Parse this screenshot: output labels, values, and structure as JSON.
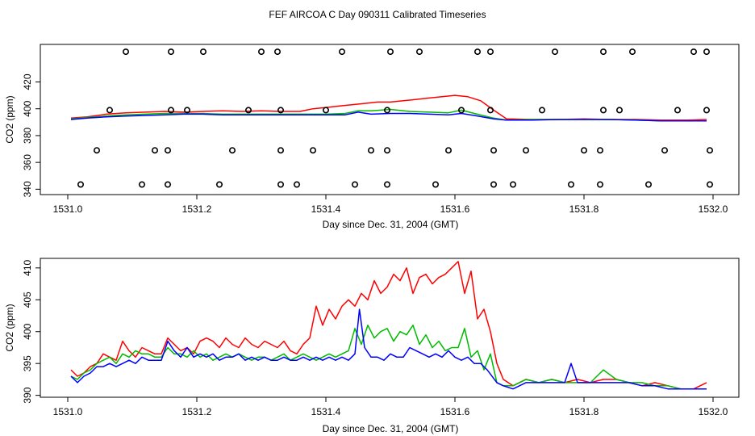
{
  "title": "FEF AIRCOA C  Day 090311  Calibrated Timeseries",
  "colors": {
    "series1": "#ff0000",
    "series2": "#00bb00",
    "series3": "#0000ff",
    "axis": "#000000"
  },
  "chart_data": [
    {
      "type": "line",
      "panel": "top",
      "xlabel": "Day since Dec. 31, 2004 (GMT)",
      "ylabel": "CO2 (ppm)",
      "xlim": [
        1531.0,
        1532.0
      ],
      "ylim": [
        336,
        448
      ],
      "x_ticks": [
        1531.0,
        1531.2,
        1531.4,
        1531.6,
        1531.8,
        1532.0
      ],
      "x_tick_labels": [
        "1531.0",
        "1531.2",
        "1531.4",
        "1531.6",
        "1531.8",
        "1532.0"
      ],
      "y_ticks": [
        340,
        360,
        380,
        400,
        420
      ],
      "y_tick_labels": [
        "340",
        "360",
        "380",
        "400",
        "420"
      ],
      "series": [
        {
          "name": "series1",
          "color": "#ff0000",
          "x": [
            1531.005,
            1531.03,
            1531.06,
            1531.09,
            1531.12,
            1531.15,
            1531.18,
            1531.21,
            1531.24,
            1531.27,
            1531.3,
            1531.33,
            1531.36,
            1531.38,
            1531.4,
            1531.42,
            1531.44,
            1531.46,
            1531.48,
            1531.5,
            1531.52,
            1531.54,
            1531.56,
            1531.58,
            1531.6,
            1531.62,
            1531.64,
            1531.66,
            1531.68,
            1531.72,
            1531.76,
            1531.8,
            1531.84,
            1531.88,
            1531.92,
            1531.96,
            1531.99
          ],
          "values": [
            393,
            394,
            396,
            397,
            397.5,
            398,
            397.5,
            398,
            398.5,
            398,
            398.5,
            398,
            398,
            400,
            401,
            402,
            403,
            404,
            405,
            405,
            406,
            407,
            408,
            409,
            410,
            409,
            406,
            399,
            392.5,
            392,
            392,
            392.5,
            392,
            392,
            391.5,
            391.5,
            392
          ]
        },
        {
          "name": "series2",
          "color": "#00bb00",
          "x": [
            1531.005,
            1531.03,
            1531.06,
            1531.09,
            1531.12,
            1531.15,
            1531.18,
            1531.21,
            1531.24,
            1531.27,
            1531.3,
            1531.33,
            1531.36,
            1531.4,
            1531.43,
            1531.45,
            1531.47,
            1531.5,
            1531.53,
            1531.56,
            1531.59,
            1531.61,
            1531.63,
            1531.66,
            1531.68,
            1531.72,
            1531.76,
            1531.8,
            1531.84,
            1531.88,
            1531.92,
            1531.96,
            1531.99
          ],
          "values": [
            392.5,
            393.5,
            394.5,
            395.5,
            396,
            396.5,
            396.5,
            396.5,
            396,
            396,
            396,
            396,
            396,
            396,
            396.5,
            398.5,
            398.5,
            399.5,
            398,
            397.5,
            397,
            399,
            396.5,
            393,
            391.5,
            392,
            392,
            392,
            392,
            391.5,
            391,
            391,
            391
          ]
        },
        {
          "name": "series3",
          "color": "#0000ff",
          "x": [
            1531.005,
            1531.03,
            1531.06,
            1531.09,
            1531.12,
            1531.15,
            1531.18,
            1531.21,
            1531.24,
            1531.27,
            1531.3,
            1531.33,
            1531.36,
            1531.4,
            1531.43,
            1531.45,
            1531.47,
            1531.5,
            1531.53,
            1531.56,
            1531.59,
            1531.61,
            1531.63,
            1531.66,
            1531.68,
            1531.72,
            1531.76,
            1531.8,
            1531.84,
            1531.88,
            1531.92,
            1531.96,
            1531.99
          ],
          "values": [
            392,
            393,
            394,
            394.5,
            395,
            395.5,
            396,
            396,
            395.5,
            395.5,
            395.5,
            395.5,
            395.5,
            395.5,
            395.5,
            397.5,
            396,
            396.5,
            396.5,
            396,
            395.5,
            396.5,
            395,
            392.5,
            391.5,
            391.5,
            392,
            392,
            392,
            391.5,
            391,
            391,
            391
          ]
        }
      ],
      "markers": {
        "name": "open circles",
        "x": [
          1531.09,
          1531.16,
          1531.21,
          1531.3,
          1531.325,
          1531.425,
          1531.5,
          1531.545,
          1531.635,
          1531.655,
          1531.755,
          1531.83,
          1531.875,
          1531.97,
          1531.99,
          1531.065,
          1531.16,
          1531.185,
          1531.28,
          1531.33,
          1531.4,
          1531.495,
          1531.61,
          1531.655,
          1531.735,
          1531.83,
          1531.855,
          1531.945,
          1531.99,
          1531.045,
          1531.135,
          1531.155,
          1531.255,
          1531.33,
          1531.38,
          1531.47,
          1531.495,
          1531.59,
          1531.66,
          1531.71,
          1531.8,
          1531.825,
          1531.925,
          1531.995,
          1531.02,
          1531.115,
          1531.155,
          1531.235,
          1531.33,
          1531.355,
          1531.445,
          1531.495,
          1531.57,
          1531.66,
          1531.69,
          1531.78,
          1531.825,
          1531.9,
          1531.995
        ],
        "values": [
          442.5,
          442.5,
          442.5,
          442.5,
          442.5,
          442.5,
          442.5,
          442.5,
          442.5,
          442.5,
          442.5,
          442.5,
          442.5,
          442.5,
          442.5,
          399,
          399,
          399,
          399,
          399,
          399,
          399,
          399,
          399,
          399,
          399,
          399,
          399,
          399,
          369,
          369,
          369,
          369,
          369,
          369,
          369,
          369,
          369,
          369,
          369,
          369,
          369,
          369,
          369,
          343.5,
          343.5,
          343.5,
          343.5,
          343.5,
          343.5,
          343.5,
          343.5,
          343.5,
          343.5,
          343.5,
          343.5,
          343.5,
          343.5,
          343.5
        ]
      }
    },
    {
      "type": "line",
      "panel": "bottom",
      "xlabel": "Day since Dec. 31, 2004 (GMT)",
      "ylabel": "CO2 (ppm)",
      "xlim": [
        1531.0,
        1532.0
      ],
      "ylim": [
        389.7,
        411.5
      ],
      "x_ticks": [
        1531.0,
        1531.2,
        1531.4,
        1531.6,
        1531.8,
        1532.0
      ],
      "x_tick_labels": [
        "1531.0",
        "1531.2",
        "1531.4",
        "1531.6",
        "1531.8",
        "1532.0"
      ],
      "y_ticks": [
        390,
        395,
        400,
        405,
        410
      ],
      "y_tick_labels": [
        "390",
        "395",
        "400",
        "405",
        "410"
      ],
      "series": [
        {
          "name": "series1",
          "color": "#ff0000",
          "x": [
            1531.005,
            1531.015,
            1531.025,
            1531.035,
            1531.045,
            1531.055,
            1531.065,
            1531.075,
            1531.085,
            1531.095,
            1531.105,
            1531.115,
            1531.125,
            1531.135,
            1531.145,
            1531.155,
            1531.165,
            1531.175,
            1531.185,
            1531.195,
            1531.205,
            1531.215,
            1531.225,
            1531.235,
            1531.245,
            1531.255,
            1531.265,
            1531.275,
            1531.285,
            1531.295,
            1531.305,
            1531.315,
            1531.325,
            1531.335,
            1531.345,
            1531.355,
            1531.365,
            1531.375,
            1531.385,
            1531.395,
            1531.405,
            1531.415,
            1531.425,
            1531.435,
            1531.445,
            1531.455,
            1531.465,
            1531.475,
            1531.485,
            1531.495,
            1531.505,
            1531.515,
            1531.525,
            1531.535,
            1531.545,
            1531.555,
            1531.565,
            1531.575,
            1531.585,
            1531.595,
            1531.605,
            1531.615,
            1531.625,
            1531.635,
            1531.645,
            1531.655,
            1531.665,
            1531.675,
            1531.69,
            1531.71,
            1531.73,
            1531.75,
            1531.77,
            1531.79,
            1531.81,
            1531.83,
            1531.85,
            1531.87,
            1531.89,
            1531.91,
            1531.93,
            1531.95,
            1531.97,
            1531.99
          ],
          "values": [
            394,
            393,
            393.5,
            394.5,
            395,
            396.5,
            396,
            395.5,
            398.5,
            397,
            396,
            397.5,
            397,
            396.5,
            396.5,
            399,
            398,
            397,
            397.5,
            396.5,
            398.5,
            399,
            398.5,
            397.5,
            399,
            398,
            397.5,
            399,
            398,
            397.5,
            398.5,
            398,
            397.5,
            398.5,
            397,
            396.5,
            398,
            399,
            404,
            401,
            403.5,
            402,
            404,
            405,
            404,
            406,
            405,
            408,
            406,
            407,
            409,
            408,
            410,
            406,
            408.5,
            409,
            407.5,
            408.5,
            409,
            410,
            411,
            406,
            409.5,
            402,
            403.5,
            400,
            395,
            392.5,
            391.5,
            392.5,
            392,
            392.5,
            392,
            392.5,
            392,
            392.5,
            392.5,
            392,
            391.5,
            392,
            391.5,
            391,
            391,
            392
          ]
        },
        {
          "name": "series2",
          "color": "#00bb00",
          "x": [
            1531.005,
            1531.015,
            1531.025,
            1531.035,
            1531.045,
            1531.055,
            1531.065,
            1531.075,
            1531.085,
            1531.095,
            1531.105,
            1531.115,
            1531.125,
            1531.135,
            1531.145,
            1531.155,
            1531.165,
            1531.175,
            1531.185,
            1531.195,
            1531.205,
            1531.215,
            1531.225,
            1531.235,
            1531.245,
            1531.255,
            1531.265,
            1531.275,
            1531.285,
            1531.295,
            1531.305,
            1531.315,
            1531.325,
            1531.335,
            1531.345,
            1531.355,
            1531.365,
            1531.375,
            1531.385,
            1531.395,
            1531.405,
            1531.415,
            1531.425,
            1531.435,
            1531.445,
            1531.455,
            1531.465,
            1531.475,
            1531.485,
            1531.495,
            1531.505,
            1531.515,
            1531.525,
            1531.535,
            1531.545,
            1531.555,
            1531.565,
            1531.575,
            1531.585,
            1531.595,
            1531.605,
            1531.615,
            1531.625,
            1531.635,
            1531.645,
            1531.655,
            1531.665,
            1531.675,
            1531.69,
            1531.71,
            1531.73,
            1531.75,
            1531.77,
            1531.79,
            1531.81,
            1531.83,
            1531.85,
            1531.87,
            1531.89,
            1531.91,
            1531.93,
            1531.95,
            1531.97,
            1531.99
          ],
          "values": [
            393,
            392.5,
            393.5,
            394,
            395,
            395.5,
            396,
            395,
            396.5,
            396,
            397,
            396.5,
            396.5,
            396,
            396,
            397.5,
            396.5,
            396.5,
            396,
            397,
            396,
            396.5,
            395.5,
            396,
            396.5,
            396,
            396.5,
            396,
            395.5,
            396,
            396,
            395.5,
            396,
            396.5,
            395.5,
            396,
            396.5,
            396,
            395.5,
            396,
            396.5,
            396,
            396.5,
            397,
            400.5,
            398,
            401,
            399,
            400,
            400.5,
            398.5,
            400,
            399.5,
            401,
            398,
            399.5,
            397.5,
            398.5,
            397,
            397.5,
            397.5,
            400.5,
            396,
            397,
            394,
            396.5,
            392,
            391.5,
            391.5,
            392.5,
            392,
            392.5,
            392,
            392,
            392,
            394,
            392.5,
            392,
            392,
            391.5,
            391.5,
            391,
            391,
            391
          ]
        },
        {
          "name": "series3",
          "color": "#0000ff",
          "x": [
            1531.005,
            1531.015,
            1531.025,
            1531.035,
            1531.045,
            1531.055,
            1531.065,
            1531.075,
            1531.085,
            1531.095,
            1531.105,
            1531.115,
            1531.125,
            1531.135,
            1531.145,
            1531.155,
            1531.165,
            1531.175,
            1531.185,
            1531.195,
            1531.205,
            1531.215,
            1531.225,
            1531.235,
            1531.245,
            1531.255,
            1531.265,
            1531.275,
            1531.285,
            1531.295,
            1531.305,
            1531.315,
            1531.325,
            1531.335,
            1531.345,
            1531.355,
            1531.365,
            1531.375,
            1531.385,
            1531.395,
            1531.405,
            1531.415,
            1531.425,
            1531.435,
            1531.445,
            1531.452,
            1531.46,
            1531.47,
            1531.48,
            1531.49,
            1531.5,
            1531.51,
            1531.52,
            1531.53,
            1531.54,
            1531.55,
            1531.56,
            1531.57,
            1531.58,
            1531.59,
            1531.6,
            1531.61,
            1531.62,
            1531.63,
            1531.64,
            1531.65,
            1531.665,
            1531.675,
            1531.69,
            1531.71,
            1531.73,
            1531.75,
            1531.77,
            1531.78,
            1531.79,
            1531.81,
            1531.83,
            1531.85,
            1531.87,
            1531.89,
            1531.91,
            1531.93,
            1531.95,
            1531.97,
            1531.99
          ],
          "values": [
            393,
            392,
            393,
            393.5,
            394.5,
            394.5,
            395,
            394.5,
            395,
            395.5,
            395,
            396,
            395.5,
            395.5,
            395.5,
            398.5,
            397,
            396,
            397.5,
            396,
            396.5,
            396,
            396.5,
            395.5,
            396,
            396,
            396.5,
            395.5,
            396,
            395.5,
            396,
            395.5,
            395.5,
            396,
            395.5,
            395.5,
            396,
            395.5,
            396,
            395.5,
            396,
            395.5,
            396,
            395.5,
            396.5,
            403.5,
            397.5,
            396,
            396,
            395.5,
            396.5,
            396,
            396,
            397.5,
            397,
            396.5,
            396,
            396.5,
            396,
            397,
            396,
            395.5,
            396,
            395,
            395,
            394,
            392,
            391.5,
            391,
            392,
            392,
            392,
            392,
            395,
            392,
            392,
            392,
            392,
            392,
            391.5,
            391.5,
            391,
            391,
            391,
            391
          ]
        }
      ]
    }
  ]
}
